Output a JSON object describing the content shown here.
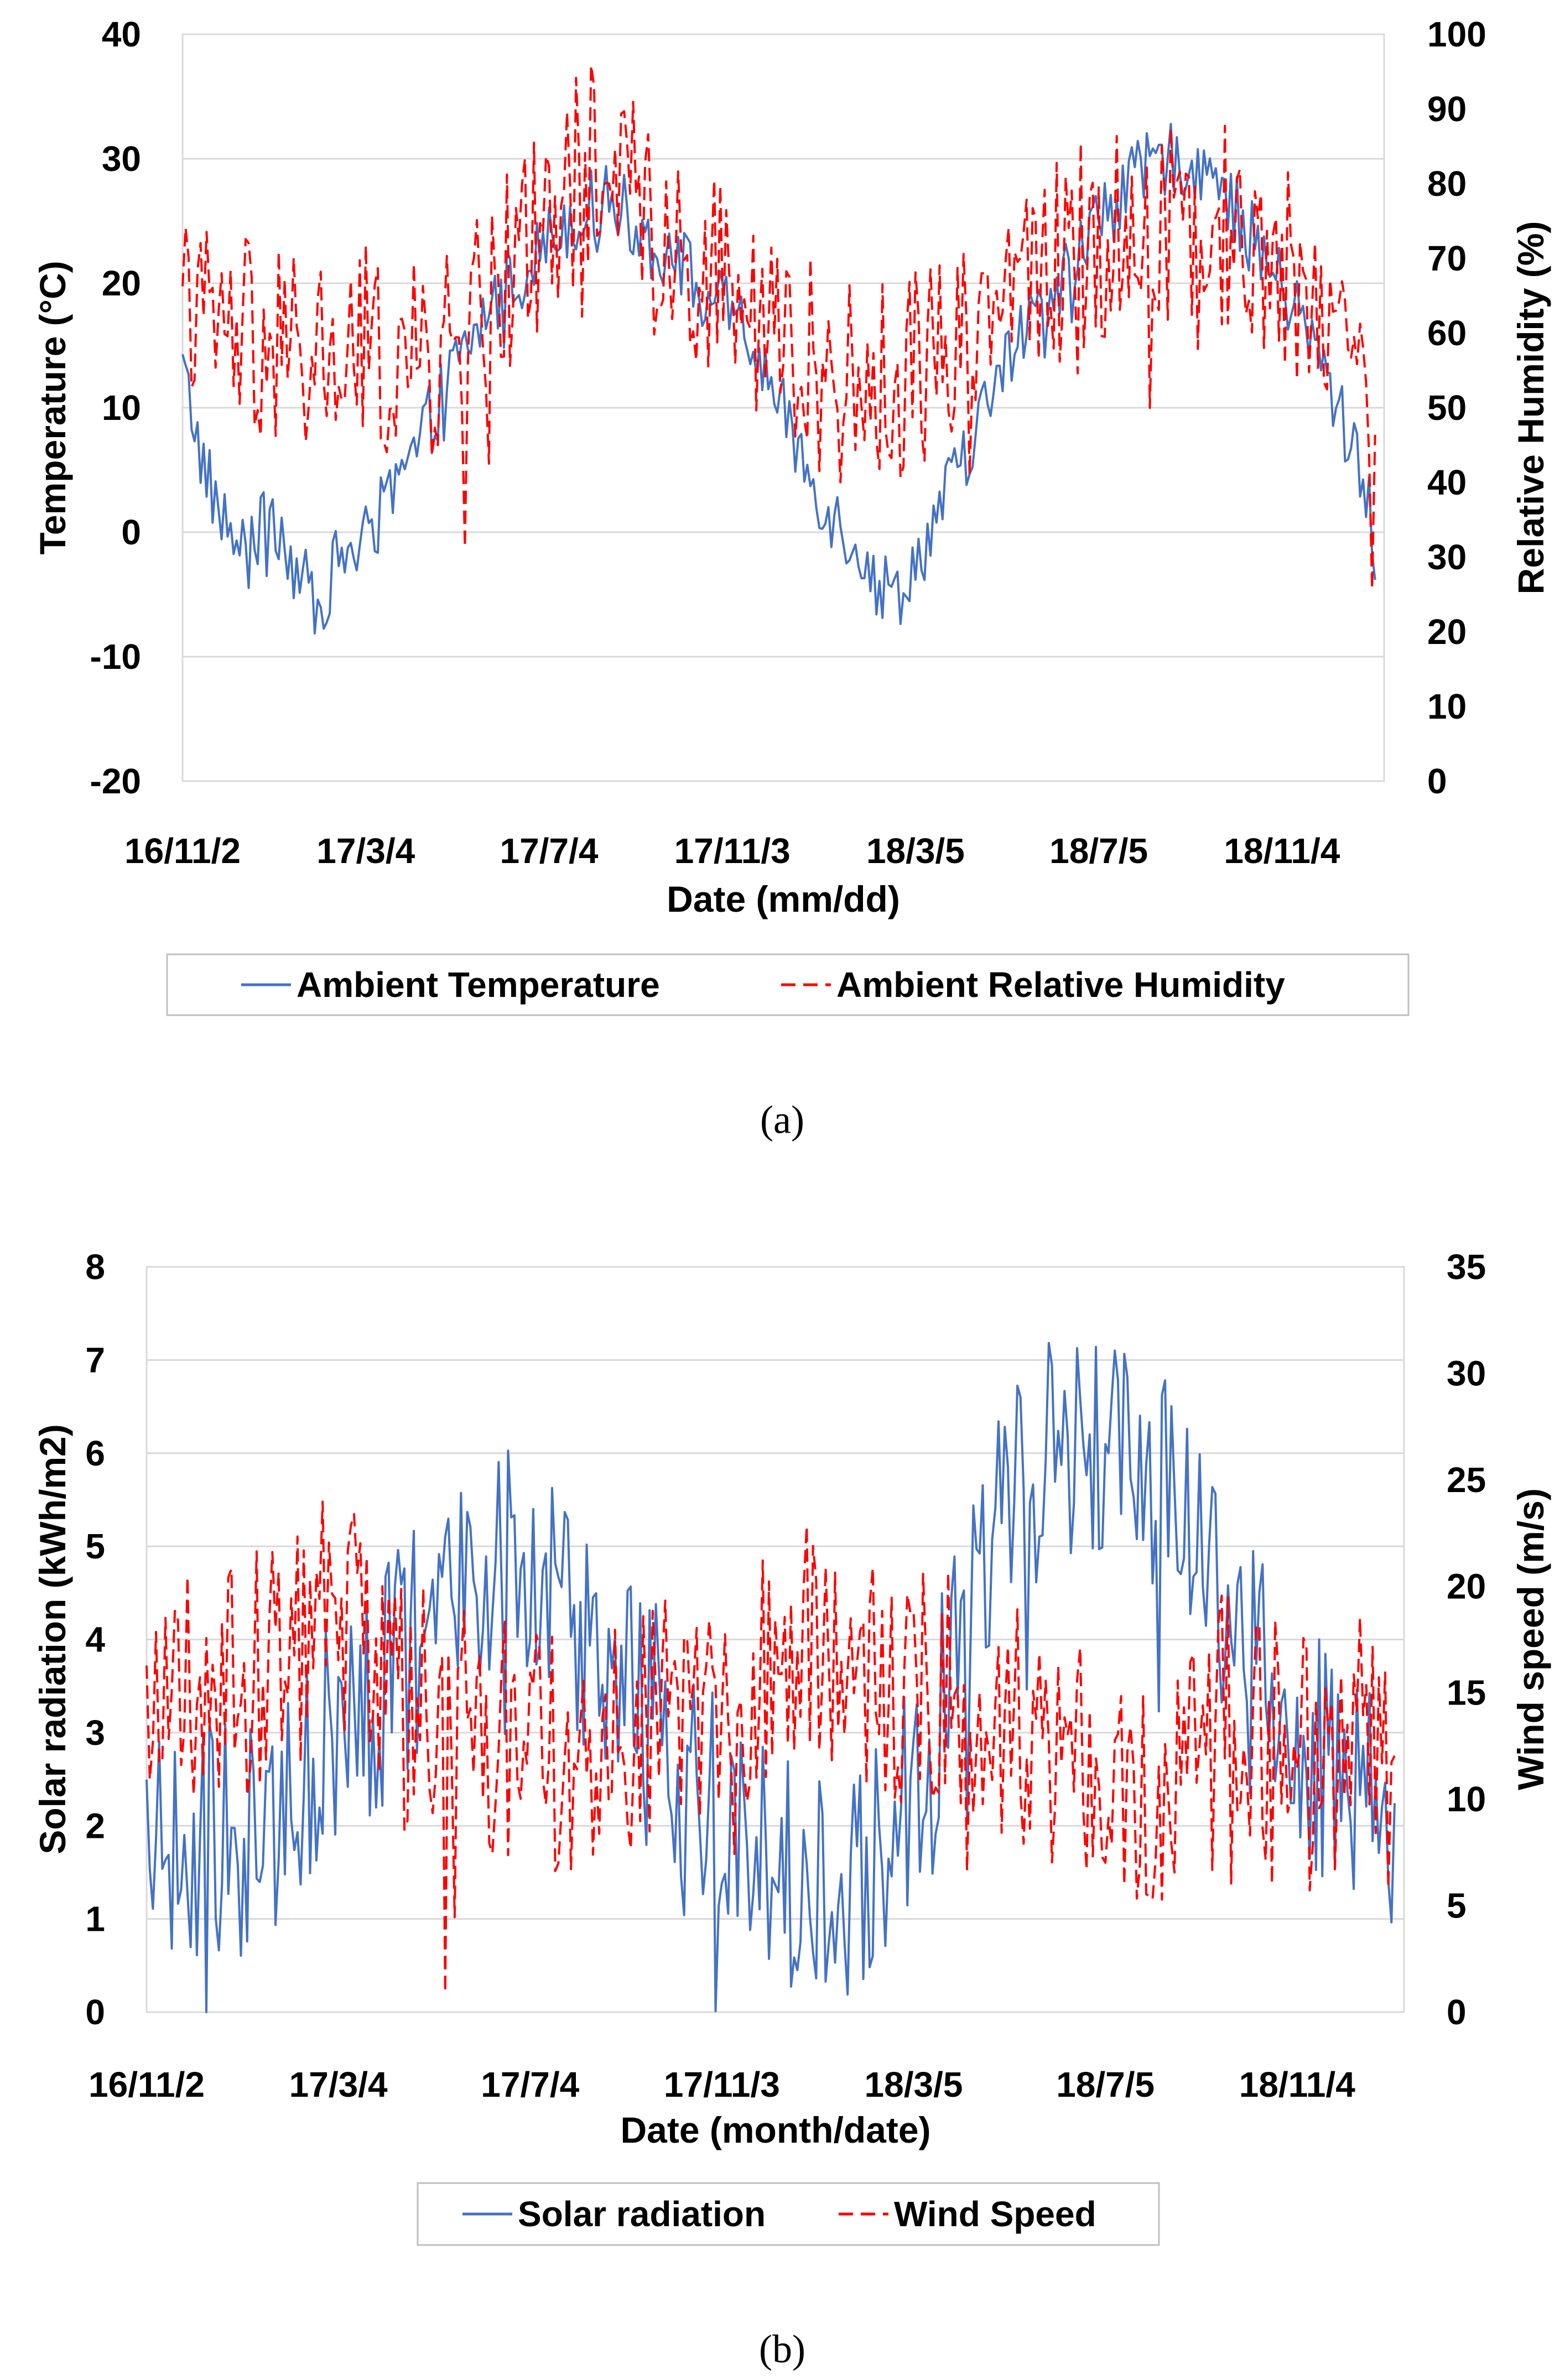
{
  "chart_data": [
    {
      "id": "a",
      "type": "line",
      "caption": "(a)",
      "xlabel": "Date (mm/dd)",
      "ylabel": "Temperature (°C)",
      "y2label": "Relative Humidity (%)",
      "ylim": [
        -20,
        40
      ],
      "yticks": [
        -20,
        -10,
        0,
        10,
        20,
        30,
        40
      ],
      "y2lim": [
        0,
        100
      ],
      "y2ticks": [
        0,
        10,
        20,
        30,
        40,
        50,
        60,
        70,
        80,
        90,
        100
      ],
      "x_range_days": [
        0,
        800
      ],
      "xticks": [
        {
          "day": 0,
          "label": "16/11/2"
        },
        {
          "day": 122,
          "label": "17/3/4"
        },
        {
          "day": 244,
          "label": "17/7/4"
        },
        {
          "day": 366,
          "label": "17/11/3"
        },
        {
          "day": 488,
          "label": "18/3/5"
        },
        {
          "day": 610,
          "label": "18/7/5"
        },
        {
          "day": 732,
          "label": "18/11/4"
        }
      ],
      "legend": [
        "Ambient Temperature",
        "Ambient Relative Humidity"
      ],
      "legend_position": "bottom",
      "series": [
        {
          "name": "Ambient Temperature",
          "axis": "left",
          "color": "#4472C4",
          "dash": "solid",
          "x": [
            0,
            15,
            30,
            45,
            60,
            75,
            90,
            105,
            120,
            135,
            150,
            165,
            180,
            195,
            210,
            225,
            240,
            255,
            270,
            285,
            300,
            315,
            330,
            345,
            360,
            375,
            390,
            405,
            420,
            435,
            450,
            460,
            475,
            490,
            505,
            520,
            535,
            550,
            565,
            580,
            595,
            610,
            625,
            640,
            655,
            670,
            685,
            700,
            715,
            730,
            745,
            760,
            775,
            790,
            795
          ],
          "values": [
            13,
            5,
            0,
            -2,
            2,
            -3,
            -6,
            -2,
            -1,
            2,
            5,
            9,
            13,
            16,
            19,
            21,
            23,
            25,
            26,
            27,
            25,
            23,
            22,
            20,
            18,
            16,
            12,
            8,
            4,
            1,
            -1,
            -4,
            -5,
            -2,
            2,
            6,
            10,
            14,
            17,
            20,
            22,
            25,
            27,
            29,
            30,
            30,
            29,
            26,
            23,
            20,
            17,
            13,
            8,
            3,
            -5
          ],
          "noise": 3
        },
        {
          "name": "Ambient Relative Humidity",
          "axis": "right",
          "color": "#FF0000",
          "dash": "dashed",
          "x": [
            0,
            30,
            60,
            90,
            120,
            150,
            180,
            210,
            240,
            270,
            300,
            330,
            360,
            390,
            420,
            450,
            480,
            510,
            540,
            570,
            600,
            630,
            660,
            690,
            720,
            750,
            780,
            795
          ],
          "values": [
            62,
            60,
            58,
            56,
            58,
            55,
            58,
            66,
            75,
            83,
            80,
            73,
            66,
            62,
            56,
            52,
            54,
            60,
            66,
            68,
            72,
            74,
            77,
            75,
            70,
            66,
            58,
            52
          ],
          "noise": 14
        }
      ]
    },
    {
      "id": "b",
      "type": "line",
      "caption": "(b)",
      "xlabel": "Date (month/date)",
      "ylabel": "Solar radiation (kWh/m2)",
      "y2label": "Wind speed (m/s)",
      "ylim": [
        0,
        8
      ],
      "yticks": [
        0,
        1,
        2,
        3,
        4,
        5,
        6,
        7,
        8
      ],
      "y2lim": [
        0,
        35
      ],
      "y2ticks": [
        0,
        5,
        10,
        15,
        20,
        25,
        30,
        35
      ],
      "x_range_days": [
        0,
        800
      ],
      "xticks": [
        {
          "day": 0,
          "label": "16/11/2"
        },
        {
          "day": 122,
          "label": "17/3/4"
        },
        {
          "day": 244,
          "label": "17/7/4"
        },
        {
          "day": 366,
          "label": "17/11/3"
        },
        {
          "day": 488,
          "label": "18/3/5"
        },
        {
          "day": 610,
          "label": "18/7/5"
        },
        {
          "day": 732,
          "label": "18/11/4"
        }
      ],
      "legend": [
        "Solar radiation",
        "Wind Speed"
      ],
      "legend_position": "bottom",
      "series": [
        {
          "name": "Solar radiation",
          "axis": "left",
          "color": "#4472C4",
          "dash": "solid",
          "x": [
            0,
            30,
            60,
            90,
            120,
            150,
            180,
            210,
            240,
            270,
            300,
            330,
            360,
            390,
            420,
            450,
            480,
            510,
            540,
            570,
            600,
            630,
            660,
            690,
            720,
            750,
            780,
            795
          ],
          "values": [
            2.1,
            1.8,
            1.8,
            2.2,
            3.0,
            3.5,
            4.2,
            4.8,
            5.0,
            4.2,
            3.6,
            3.0,
            2.2,
            1.6,
            1.4,
            1.4,
            2.0,
            3.5,
            5.0,
            6.0,
            6.0,
            6.0,
            5.2,
            4.2,
            3.4,
            2.6,
            2.2,
            2.2
          ],
          "noise": 1.3
        },
        {
          "name": "Wind Speed",
          "axis": "right",
          "color": "#FF0000",
          "dash": "dashed",
          "x": [
            0,
            30,
            60,
            90,
            120,
            150,
            180,
            210,
            240,
            270,
            300,
            330,
            360,
            390,
            420,
            450,
            480,
            510,
            540,
            570,
            600,
            630,
            660,
            690,
            720,
            750,
            780,
            795
          ],
          "values": [
            14,
            15,
            16,
            17,
            19,
            15,
            14,
            13,
            12,
            12,
            13,
            14,
            15,
            16,
            17,
            16,
            15,
            16,
            14,
            12,
            11,
            10,
            12,
            14,
            13,
            12,
            13,
            14
          ],
          "noise": 6
        }
      ]
    }
  ]
}
